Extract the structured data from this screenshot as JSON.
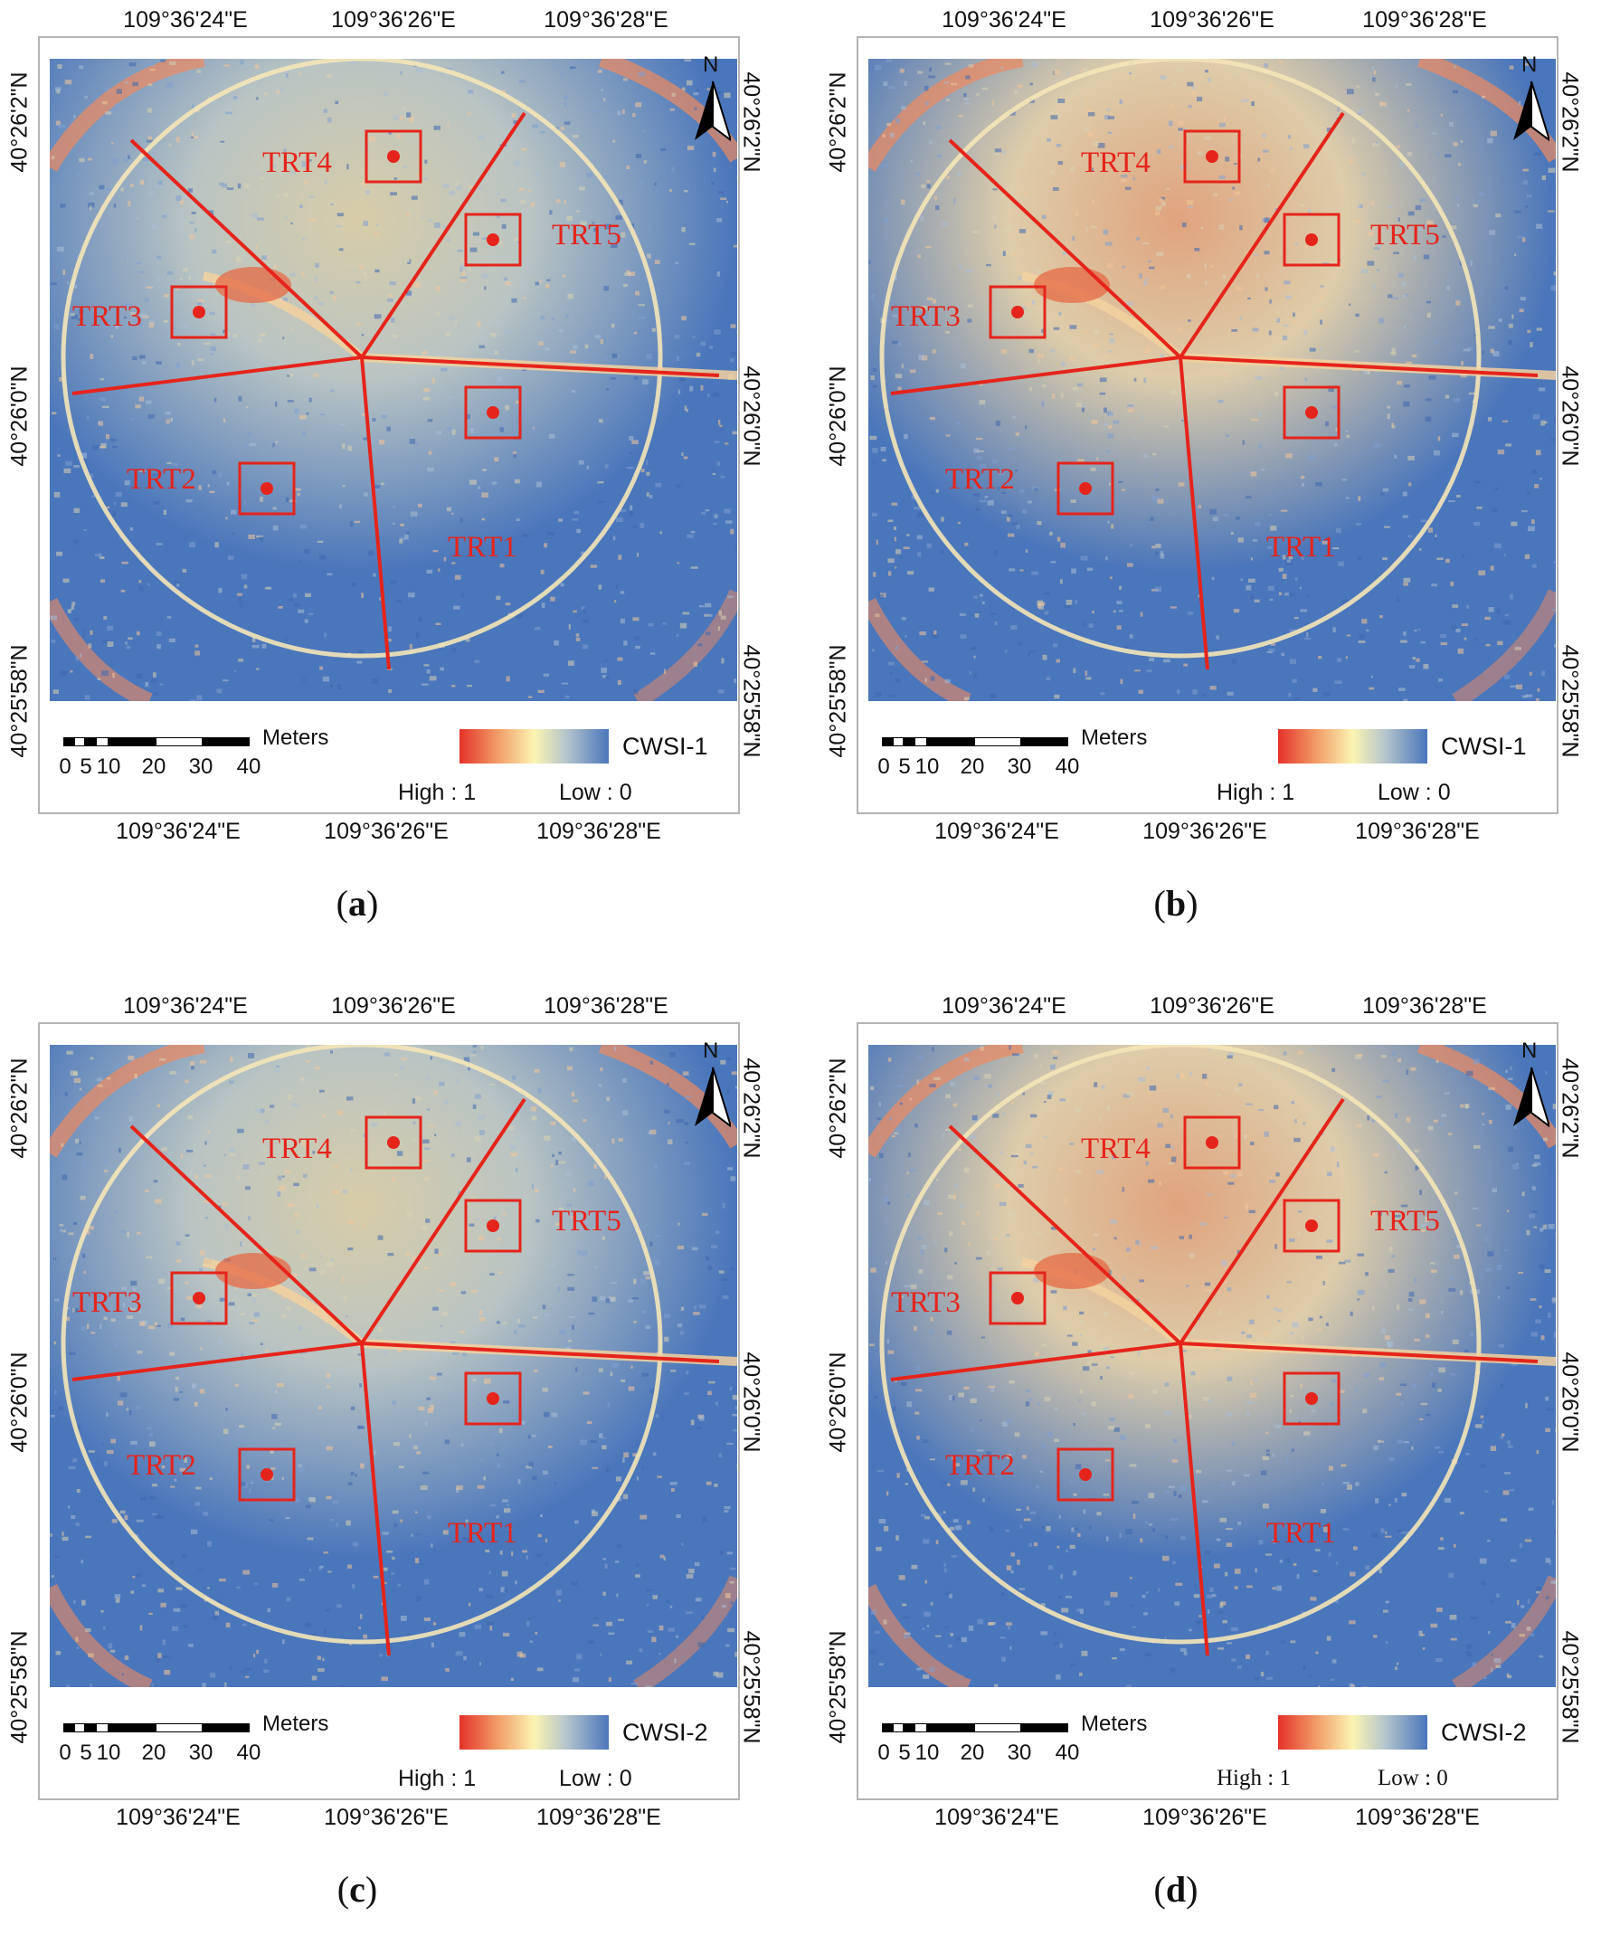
{
  "figure": {
    "panels": [
      {
        "id": "a",
        "caption_letter": "a",
        "index_name": "CWSI-1",
        "legend": {
          "high": "High : 1",
          "low": "Low : 0",
          "serif": false
        },
        "lon_labels": [
          "109°36'24\"E",
          "109°36'26\"E",
          "109°36'28\"E"
        ],
        "lat_labels_left": [
          "40°26'2\"N",
          "40°26'0\"N",
          "40°25'58\"N"
        ],
        "lat_labels_right": [
          "40°26'2\"N",
          "40°26'0\"N",
          "40°25'58\"N"
        ],
        "scale": {
          "ticks": [
            "0",
            "5",
            "10",
            "20",
            "30",
            "40"
          ],
          "unit": "Meters"
        },
        "north": "N",
        "treatments": [
          "TRT1",
          "TRT2",
          "TRT3",
          "TRT4",
          "TRT5"
        ],
        "wet": 0.35
      },
      {
        "id": "b",
        "caption_letter": "b",
        "index_name": "CWSI-1",
        "legend": {
          "high": "High : 1",
          "low": "Low : 0",
          "serif": false
        },
        "lon_labels": [
          "109°36'24\"E",
          "109°36'26\"E",
          "109°36'28\"E"
        ],
        "lat_labels_left": [
          "40°26'2\"N",
          "40°26'0\"N",
          "40°25'58\"N"
        ],
        "lat_labels_right": [
          "40°26'2\"N",
          "40°26'0\"N",
          "40°25'58\"N"
        ],
        "scale": {
          "ticks": [
            "0",
            "5",
            "10",
            "20",
            "30",
            "40"
          ],
          "unit": "Meters"
        },
        "north": "N",
        "treatments": [
          "TRT1",
          "TRT2",
          "TRT3",
          "TRT4",
          "TRT5"
        ],
        "wet": 0.65
      },
      {
        "id": "c",
        "caption_letter": "c",
        "index_name": "CWSI-2",
        "legend": {
          "high": "High : 1",
          "low": "Low : 0",
          "serif": false
        },
        "lon_labels": [
          "109°36'24\"E",
          "109°36'26\"E",
          "109°36'28\"E"
        ],
        "lat_labels_left": [
          "40°26'2\"N",
          "40°26'0\"N",
          "40°25'58\"N"
        ],
        "lat_labels_right": [
          "40°26'2\"N",
          "40°26'0\"N",
          "40°25'58\"N"
        ],
        "scale": {
          "ticks": [
            "0",
            "5",
            "10",
            "20",
            "30",
            "40"
          ],
          "unit": "Meters"
        },
        "north": "N",
        "treatments": [
          "TRT1",
          "TRT2",
          "TRT3",
          "TRT4",
          "TRT5"
        ],
        "wet": 0.35
      },
      {
        "id": "d",
        "caption_letter": "d",
        "index_name": "CWSI-2",
        "legend": {
          "high": "High : 1",
          "low": "Low : 0",
          "serif": true
        },
        "lon_labels": [
          "109°36'24\"E",
          "109°36'26\"E",
          "109°36'28\"E"
        ],
        "lat_labels_left": [
          "40°26'2\"N",
          "40°26'0\"N",
          "40°25'58\"N"
        ],
        "lat_labels_right": [
          "40°26'2\"N",
          "40°26'0\"N",
          "40°25'58\"N"
        ],
        "scale": {
          "ticks": [
            "0",
            "5",
            "10",
            "20",
            "30",
            "40"
          ],
          "unit": "Meters"
        },
        "north": "N",
        "treatments": [
          "TRT1",
          "TRT2",
          "TRT3",
          "TRT4",
          "TRT5"
        ],
        "wet": 0.65
      }
    ],
    "colors": {
      "high": "#e4322a",
      "mid": "#fbf4b2",
      "low": "#4a76bb",
      "annotation": "#e5241b"
    }
  }
}
